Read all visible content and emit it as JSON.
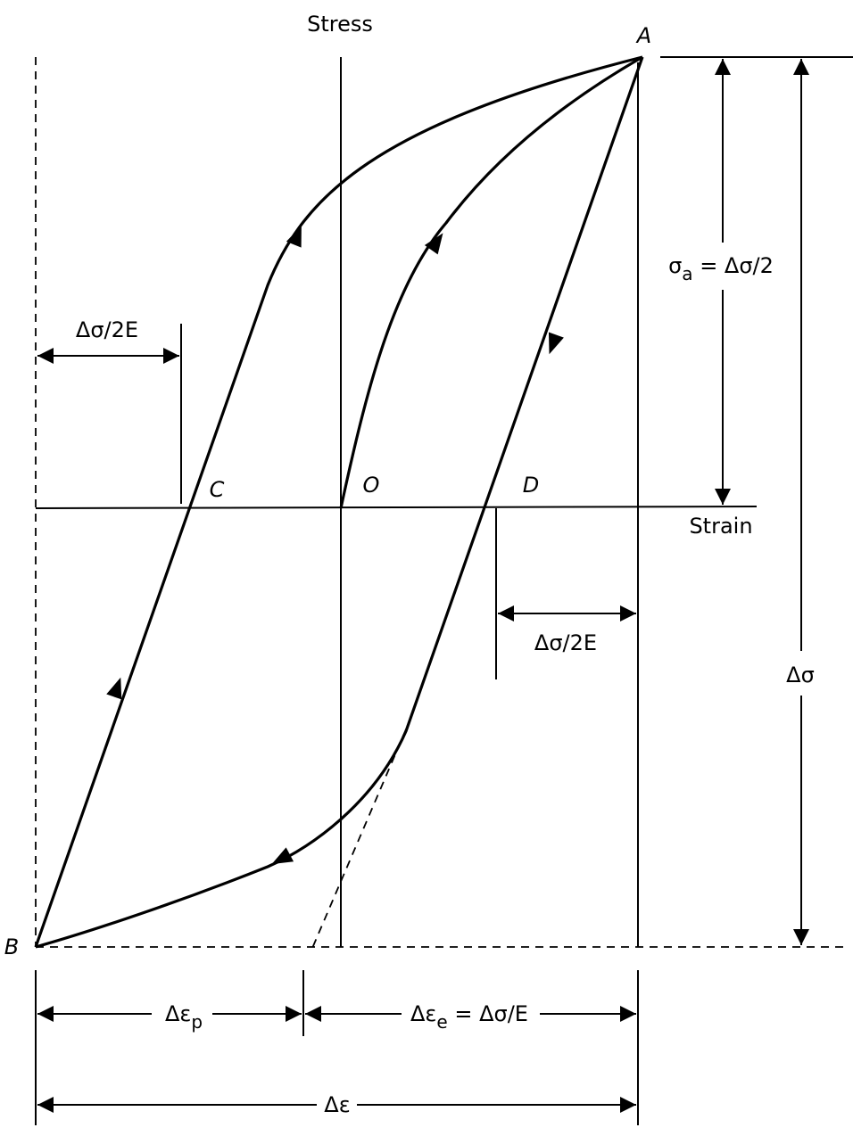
{
  "axes": {
    "stress_label": "Stress",
    "strain_label": "Strain"
  },
  "points": {
    "A": "A",
    "B": "B",
    "C": "C",
    "O": "O",
    "D": "D"
  },
  "dimensions": {
    "half_range_left": "Δσ/2E",
    "half_range_right": "Δσ/2E",
    "amplitude": {
      "main": "σ",
      "sub": "a",
      "rest": " = Δσ/2"
    },
    "stress_range": "Δσ",
    "plastic_strain": {
      "main": "Δε",
      "sub": "p"
    },
    "elastic_strain": {
      "main": "Δε",
      "sub": "e",
      "rest": " = Δσ/E"
    },
    "total_strain": "Δε"
  }
}
